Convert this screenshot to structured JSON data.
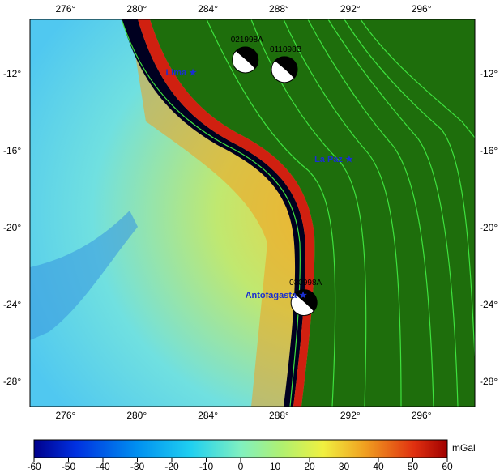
{
  "map": {
    "x_ticks": [
      "276°",
      "280°",
      "284°",
      "288°",
      "292°",
      "296°"
    ],
    "y_ticks": [
      "-12°",
      "-16°",
      "-20°",
      "-24°",
      "-28°"
    ],
    "x_tick_values": [
      276,
      280,
      284,
      288,
      292,
      296
    ],
    "y_tick_values": [
      -12,
      -16,
      -20,
      -24,
      -28
    ],
    "lon_range": [
      274,
      299
    ],
    "lat_range": [
      -29.3,
      -9.2
    ],
    "cities": [
      {
        "name": "Lima",
        "lon": 282.9,
        "lat": -12.0
      },
      {
        "name": "La Paz",
        "lon": 291.9,
        "lat": -16.5
      },
      {
        "name": "Antofagasta",
        "lon": 289.6,
        "lat": -23.6
      }
    ],
    "events": [
      {
        "label": "021998A",
        "lon": 286.1,
        "lat": -11.3
      },
      {
        "label": "011098B",
        "lon": 288.3,
        "lat": -11.8
      },
      {
        "label": "030998A",
        "lon": 289.4,
        "lat": -23.9
      }
    ],
    "colors": {
      "land": "#1e6e0c",
      "contours": "#3ee23e",
      "city": "#1a2fd0",
      "rivers": "#1b3fd0"
    }
  },
  "colorbar": {
    "unit": "mGal",
    "ticks": [
      "-60",
      "-50",
      "-40",
      "-30",
      "-20",
      "-10",
      "0",
      "10",
      "20",
      "30",
      "40",
      "50",
      "60"
    ],
    "range": [
      -60,
      60
    ],
    "colors": [
      "#00008c",
      "#0030e0",
      "#0090f0",
      "#20d0f0",
      "#80f0d0",
      "#a0f080",
      "#f0f040",
      "#f0a020",
      "#e03010",
      "#a00000"
    ]
  }
}
